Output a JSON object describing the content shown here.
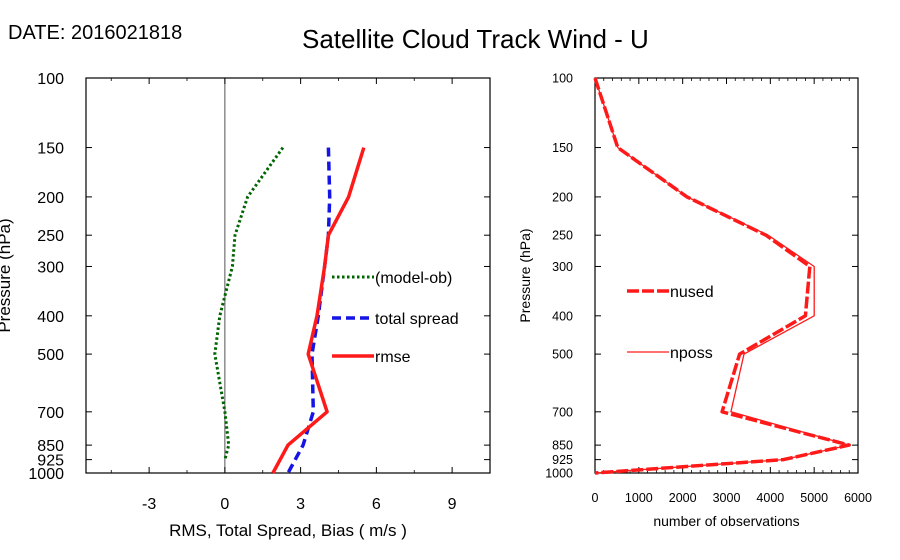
{
  "header": {
    "date": "DATE: 2016021818",
    "title": "Satellite Cloud Track Wind - U"
  },
  "chart_data": [
    {
      "type": "line",
      "name": "stats-panel",
      "xlabel": "RMS, Total Spread, Bias ( m/s )",
      "ylabel": "Pressure (hPa)",
      "xlim": [
        -5.5,
        10.5
      ],
      "ylim": [
        1000,
        100
      ],
      "y_scale": "log",
      "x_ticks": [
        -3,
        0,
        3,
        6,
        9
      ],
      "x_tick_labels": [
        "-3",
        "0",
        "3",
        "6",
        "9"
      ],
      "y_ticks": [
        100,
        150,
        200,
        250,
        300,
        400,
        500,
        700,
        850,
        925,
        1000
      ],
      "y_tick_labels": [
        "100",
        "150",
        "200",
        "250",
        "300",
        "400",
        "500",
        "700",
        "850",
        "925",
        "1000"
      ],
      "zero_line": 0,
      "series": [
        {
          "name": "(model-ob)",
          "color": "#006400",
          "style": "dotted",
          "pressure": [
            150,
            200,
            250,
            300,
            400,
            500,
            700,
            850,
            925
          ],
          "values": [
            2.3,
            0.9,
            0.4,
            0.3,
            -0.2,
            -0.4,
            0.0,
            0.15,
            0.0
          ]
        },
        {
          "name": "total spread",
          "color": "#1414e6",
          "style": "dashed",
          "pressure": [
            150,
            200,
            250,
            300,
            400,
            500,
            700,
            850,
            1000
          ],
          "values": [
            4.1,
            4.15,
            4.1,
            3.95,
            3.7,
            3.45,
            3.5,
            3.1,
            2.5
          ]
        },
        {
          "name": "rmse",
          "color": "#ff1a1a",
          "style": "solid",
          "pressure": [
            150,
            200,
            250,
            300,
            400,
            500,
            700,
            850,
            1000
          ],
          "values": [
            5.5,
            4.9,
            4.1,
            3.95,
            3.65,
            3.3,
            4.05,
            2.5,
            1.9
          ]
        }
      ],
      "legend": [
        "(model-ob)",
        "total spread",
        "rmse"
      ],
      "legend_position": "right"
    },
    {
      "type": "line",
      "name": "obs-count-panel",
      "xlabel": "number of observations",
      "ylabel": "Pressure (hPa)",
      "xlim": [
        0,
        6000
      ],
      "ylim": [
        1000,
        100
      ],
      "y_scale": "log",
      "x_ticks": [
        0,
        1000,
        2000,
        3000,
        4000,
        5000,
        6000
      ],
      "x_tick_labels": [
        "0",
        "1000",
        "2000",
        "3000",
        "4000",
        "5000",
        "6000"
      ],
      "y_ticks": [
        100,
        150,
        200,
        250,
        300,
        400,
        500,
        700,
        850,
        925,
        1000
      ],
      "y_tick_labels": [
        "100",
        "150",
        "200",
        "250",
        "300",
        "400",
        "500",
        "700",
        "850",
        "925",
        "1000"
      ],
      "series": [
        {
          "name": "nused",
          "color": "#ff1a1a",
          "style": "dashed-thick",
          "pressure": [
            100,
            150,
            200,
            250,
            300,
            400,
            500,
            700,
            850,
            925,
            1000
          ],
          "values": [
            0,
            520,
            2100,
            3900,
            4900,
            4800,
            3300,
            2900,
            5800,
            4300,
            0
          ]
        },
        {
          "name": "nposs",
          "color": "#ff1a1a",
          "style": "thin",
          "pressure": [
            100,
            150,
            200,
            250,
            300,
            400,
            500,
            700,
            850,
            925,
            1000
          ],
          "values": [
            0,
            520,
            2100,
            3950,
            5000,
            5000,
            3400,
            3100,
            5800,
            4300,
            0
          ]
        }
      ],
      "legend": [
        "nused",
        "nposs"
      ],
      "legend_position": "center-left"
    }
  ]
}
